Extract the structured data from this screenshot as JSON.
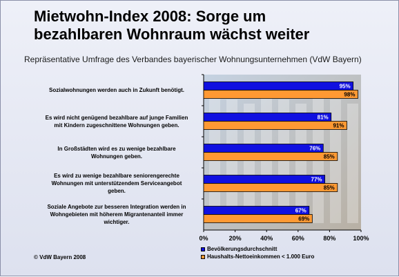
{
  "title_lines": [
    "Mietwohn-Index 2008: Sorge um",
    "bezahlbaren Wohnraum wächst weiter"
  ],
  "subtitle": "Repräsentative Umfrage des Verbandes bayerischer Wohnungsunternehmen (VdW Bayern)",
  "footer": "© VdW Bayern 2008",
  "colors": {
    "series1": "#1010e0",
    "series2": "#ff9933",
    "photo_sky": "#c5d2e2",
    "photo_building": "#b8b0a4"
  },
  "chart_data": {
    "type": "bar",
    "orientation": "horizontal",
    "categories": [
      [
        "Sozialwohnungen werden auch in Zukunft benötigt."
      ],
      [
        "Es wird nicht genügend bezahlbare auf junge Familien",
        "mit Kindern zugeschnittene Wohnungen geben."
      ],
      [
        "In Großstädten wird es zu wenige bezahlbare",
        "Wohnungen geben."
      ],
      [
        "Es wird zu wenige bezahlbare seniorengerechte",
        "Wohnungen mit unterstützendem Serviceangebot",
        "geben."
      ],
      [
        "Soziale Angebote zur besseren Integration werden in",
        "Wohngebieten mit höherem Migrantenanteil immer",
        "wichtiger."
      ]
    ],
    "series": [
      {
        "name": "Bevölkerungsdurchschnitt",
        "values": [
          95,
          81,
          76,
          77,
          67
        ],
        "labels": [
          "95%",
          "81%",
          "76%",
          "77%",
          "67%"
        ]
      },
      {
        "name": "Haushalts-Nettoeinkommen < 1.000 Euro",
        "values": [
          98,
          91,
          85,
          85,
          69
        ],
        "labels": [
          "98%",
          "91%",
          "85%",
          "85%",
          "69%"
        ]
      }
    ],
    "xlim": [
      0,
      100
    ],
    "xticks": [
      "0%",
      "20%",
      "40%",
      "60%",
      "80%",
      "100%"
    ],
    "legend_position": "bottom",
    "grid": false
  }
}
